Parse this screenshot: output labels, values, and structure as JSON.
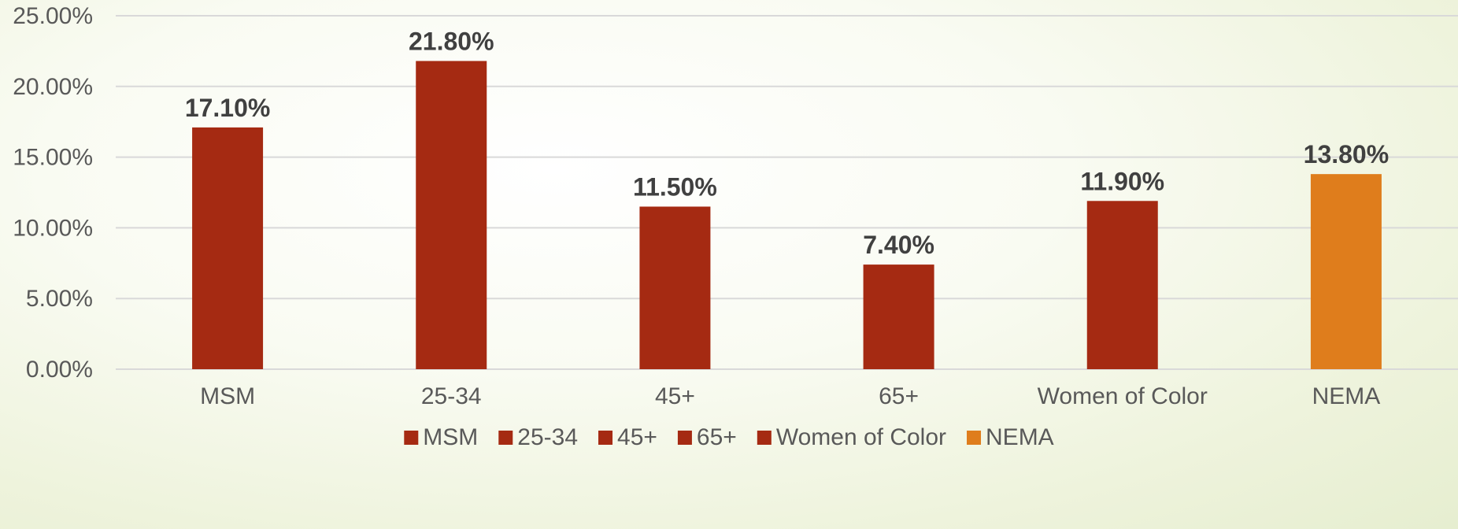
{
  "chart_data": {
    "type": "bar",
    "categories": [
      "MSM",
      "25-34",
      "45+",
      "65+",
      "Women of Color",
      "NEMA"
    ],
    "series": [
      {
        "name": "MSM",
        "category": "MSM",
        "value": 17.1,
        "color": "#a52a12"
      },
      {
        "name": "25-34",
        "category": "25-34",
        "value": 21.8,
        "color": "#a52a12"
      },
      {
        "name": "45+",
        "category": "45+",
        "value": 11.5,
        "color": "#a52a12"
      },
      {
        "name": "65+",
        "category": "65+",
        "value": 7.4,
        "color": "#a52a12"
      },
      {
        "name": "Women of Color",
        "category": "Women of Color",
        "value": 11.9,
        "color": "#a52a12"
      },
      {
        "name": "NEMA",
        "category": "NEMA",
        "value": 13.8,
        "color": "#df7d1c"
      }
    ],
    "data_labels": [
      "17.10%",
      "21.80%",
      "11.50%",
      "7.40%",
      "11.90%",
      "13.80%"
    ],
    "y_ticks": [
      "0.00%",
      "5.00%",
      "10.00%",
      "15.00%",
      "20.00%",
      "25.00%"
    ],
    "ylim": [
      0,
      25
    ],
    "y_unit": "%",
    "grid": true,
    "legend_position": "bottom",
    "title": "",
    "xlabel": "",
    "ylabel": ""
  }
}
